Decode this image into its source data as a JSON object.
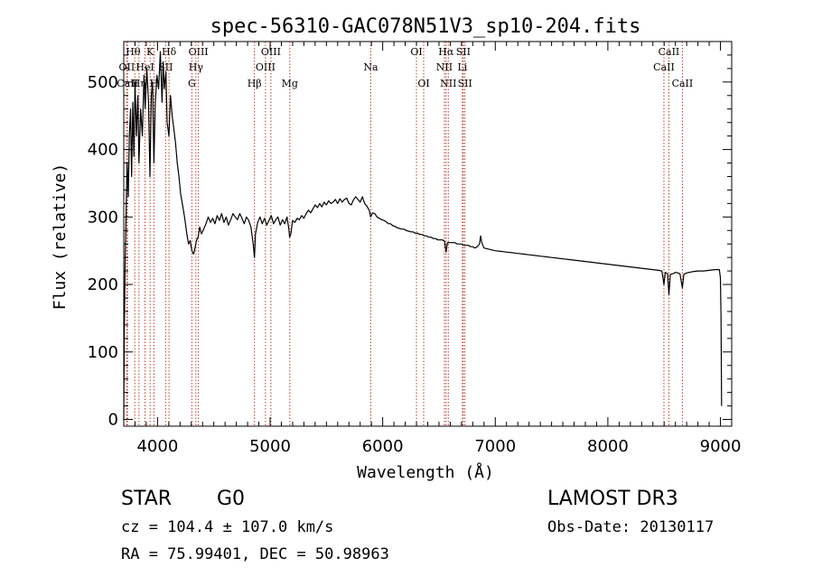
{
  "chart_data": {
    "type": "line",
    "title": "spec-56310-GAC078N51V3_sp10-204.fits",
    "xlabel": "Wavelength (Å)",
    "ylabel": "Flux (relative)",
    "xlim": [
      3700,
      9100
    ],
    "ylim": [
      -10,
      560
    ],
    "xticks": [
      4000,
      5000,
      6000,
      7000,
      8000,
      9000
    ],
    "yticks": [
      0,
      100,
      200,
      300,
      400,
      500
    ],
    "grid": false,
    "series": [
      {
        "name": "flux",
        "color": "#000000",
        "points": [
          [
            3700,
            0
          ],
          [
            3705,
            130
          ],
          [
            3712,
            230
          ],
          [
            3720,
            300
          ],
          [
            3730,
            380
          ],
          [
            3740,
            330
          ],
          [
            3750,
            420
          ],
          [
            3760,
            460
          ],
          [
            3770,
            360
          ],
          [
            3780,
            470
          ],
          [
            3790,
            390
          ],
          [
            3800,
            500
          ],
          [
            3812,
            420
          ],
          [
            3825,
            480
          ],
          [
            3835,
            380
          ],
          [
            3850,
            460
          ],
          [
            3865,
            420
          ],
          [
            3880,
            510
          ],
          [
            3890,
            460
          ],
          [
            3905,
            520
          ],
          [
            3920,
            470
          ],
          [
            3933,
            360
          ],
          [
            3945,
            480
          ],
          [
            3955,
            500
          ],
          [
            3968,
            380
          ],
          [
            3980,
            470
          ],
          [
            3995,
            510
          ],
          [
            4010,
            490
          ],
          [
            4025,
            545
          ],
          [
            4040,
            470
          ],
          [
            4050,
            530
          ],
          [
            4060,
            490
          ],
          [
            4075,
            515
          ],
          [
            4085,
            440
          ],
          [
            4101,
            420
          ],
          [
            4115,
            480
          ],
          [
            4130,
            450
          ],
          [
            4145,
            430
          ],
          [
            4160,
            410
          ],
          [
            4175,
            380
          ],
          [
            4190,
            360
          ],
          [
            4205,
            335
          ],
          [
            4220,
            320
          ],
          [
            4240,
            300
          ],
          [
            4260,
            275
          ],
          [
            4275,
            260
          ],
          [
            4290,
            265
          ],
          [
            4305,
            250
          ],
          [
            4320,
            245
          ],
          [
            4335,
            255
          ],
          [
            4345,
            265
          ],
          [
            4360,
            270
          ],
          [
            4375,
            285
          ],
          [
            4390,
            275
          ],
          [
            4410,
            282
          ],
          [
            4430,
            290
          ],
          [
            4450,
            300
          ],
          [
            4470,
            292
          ],
          [
            4490,
            298
          ],
          [
            4510,
            290
          ],
          [
            4530,
            302
          ],
          [
            4550,
            295
          ],
          [
            4570,
            305
          ],
          [
            4590,
            292
          ],
          [
            4610,
            300
          ],
          [
            4630,
            288
          ],
          [
            4650,
            296
          ],
          [
            4670,
            305
          ],
          [
            4690,
            300
          ],
          [
            4710,
            296
          ],
          [
            4730,
            305
          ],
          [
            4750,
            298
          ],
          [
            4770,
            290
          ],
          [
            4790,
            300
          ],
          [
            4810,
            295
          ],
          [
            4830,
            285
          ],
          [
            4850,
            260
          ],
          [
            4861,
            240
          ],
          [
            4870,
            275
          ],
          [
            4890,
            292
          ],
          [
            4910,
            300
          ],
          [
            4930,
            290
          ],
          [
            4950,
            298
          ],
          [
            4970,
            288
          ],
          [
            4990,
            295
          ],
          [
            5010,
            302
          ],
          [
            5030,
            290
          ],
          [
            5050,
            296
          ],
          [
            5070,
            300
          ],
          [
            5090,
            288
          ],
          [
            5110,
            296
          ],
          [
            5130,
            290
          ],
          [
            5150,
            300
          ],
          [
            5167,
            282
          ],
          [
            5173,
            270
          ],
          [
            5184,
            275
          ],
          [
            5200,
            295
          ],
          [
            5220,
            292
          ],
          [
            5240,
            298
          ],
          [
            5260,
            296
          ],
          [
            5280,
            302
          ],
          [
            5300,
            298
          ],
          [
            5320,
            305
          ],
          [
            5340,
            310
          ],
          [
            5360,
            306
          ],
          [
            5380,
            312
          ],
          [
            5400,
            318
          ],
          [
            5420,
            314
          ],
          [
            5440,
            320
          ],
          [
            5460,
            315
          ],
          [
            5480,
            322
          ],
          [
            5500,
            318
          ],
          [
            5520,
            324
          ],
          [
            5540,
            320
          ],
          [
            5560,
            322
          ],
          [
            5580,
            326
          ],
          [
            5600,
            320
          ],
          [
            5620,
            327
          ],
          [
            5640,
            322
          ],
          [
            5660,
            326
          ],
          [
            5680,
            328
          ],
          [
            5700,
            320
          ],
          [
            5720,
            318
          ],
          [
            5740,
            325
          ],
          [
            5760,
            330
          ],
          [
            5780,
            326
          ],
          [
            5800,
            322
          ],
          [
            5820,
            330
          ],
          [
            5840,
            320
          ],
          [
            5860,
            316
          ],
          [
            5880,
            310
          ],
          [
            5893,
            300
          ],
          [
            5910,
            306
          ],
          [
            5930,
            305
          ],
          [
            5950,
            300
          ],
          [
            5970,
            298
          ],
          [
            5990,
            296
          ],
          [
            6010,
            295
          ],
          [
            6030,
            293
          ],
          [
            6050,
            290
          ],
          [
            6070,
            290
          ],
          [
            6090,
            287
          ],
          [
            6110,
            286
          ],
          [
            6130,
            284
          ],
          [
            6150,
            283
          ],
          [
            6170,
            282
          ],
          [
            6190,
            282
          ],
          [
            6210,
            280
          ],
          [
            6230,
            279
          ],
          [
            6250,
            278
          ],
          [
            6270,
            278
          ],
          [
            6290,
            276
          ],
          [
            6310,
            276
          ],
          [
            6330,
            274
          ],
          [
            6350,
            274
          ],
          [
            6370,
            272
          ],
          [
            6390,
            272
          ],
          [
            6410,
            270
          ],
          [
            6430,
            270
          ],
          [
            6450,
            268
          ],
          [
            6470,
            268
          ],
          [
            6490,
            266
          ],
          [
            6510,
            266
          ],
          [
            6530,
            266
          ],
          [
            6550,
            264
          ],
          [
            6563,
            248
          ],
          [
            6575,
            262
          ],
          [
            6600,
            262
          ],
          [
            6620,
            262
          ],
          [
            6640,
            262
          ],
          [
            6660,
            260
          ],
          [
            6680,
            260
          ],
          [
            6700,
            260
          ],
          [
            6720,
            258
          ],
          [
            6740,
            258
          ],
          [
            6760,
            258
          ],
          [
            6780,
            256
          ],
          [
            6800,
            256
          ],
          [
            6820,
            254
          ],
          [
            6840,
            256
          ],
          [
            6860,
            260
          ],
          [
            6870,
            272
          ],
          [
            6880,
            262
          ],
          [
            6900,
            254
          ],
          [
            6950,
            252
          ],
          [
            7000,
            250
          ],
          [
            7050,
            249
          ],
          [
            7100,
            248
          ],
          [
            7150,
            247
          ],
          [
            7200,
            246
          ],
          [
            7250,
            245
          ],
          [
            7300,
            244
          ],
          [
            7350,
            243
          ],
          [
            7400,
            242
          ],
          [
            7450,
            241
          ],
          [
            7500,
            240
          ],
          [
            7550,
            239
          ],
          [
            7600,
            238
          ],
          [
            7650,
            237
          ],
          [
            7700,
            236
          ],
          [
            7750,
            235
          ],
          [
            7800,
            234
          ],
          [
            7850,
            233
          ],
          [
            7900,
            232
          ],
          [
            7950,
            231
          ],
          [
            8000,
            230
          ],
          [
            8050,
            229
          ],
          [
            8100,
            228
          ],
          [
            8150,
            227
          ],
          [
            8200,
            226
          ],
          [
            8250,
            225
          ],
          [
            8300,
            224
          ],
          [
            8350,
            223
          ],
          [
            8400,
            222
          ],
          [
            8450,
            221
          ],
          [
            8480,
            220
          ],
          [
            8498,
            200
          ],
          [
            8510,
            218
          ],
          [
            8530,
            216
          ],
          [
            8542,
            185
          ],
          [
            8555,
            215
          ],
          [
            8580,
            216
          ],
          [
            8600,
            218
          ],
          [
            8620,
            217
          ],
          [
            8640,
            216
          ],
          [
            8662,
            195
          ],
          [
            8675,
            215
          ],
          [
            8700,
            217
          ],
          [
            8750,
            219
          ],
          [
            8800,
            220
          ],
          [
            8850,
            220
          ],
          [
            8900,
            221
          ],
          [
            8950,
            222
          ],
          [
            8990,
            222
          ],
          [
            9000,
            210
          ],
          [
            9005,
            150
          ],
          [
            9010,
            20
          ]
        ]
      }
    ],
    "lines": [
      {
        "name": "Hθ",
        "wl": 3798
      },
      {
        "name": "OII",
        "wl": 3727
      },
      {
        "name": "CaII",
        "wl": 3733
      },
      {
        "name": "Hη",
        "wl": 3835
      },
      {
        "name": "HeI",
        "wl": 3889
      },
      {
        "name": "K",
        "wl": 3934
      },
      {
        "name": "SII",
        "wl": 4072
      },
      {
        "name": "H",
        "wl": 3968
      },
      {
        "name": "Hδ",
        "wl": 4102
      },
      {
        "name": "OIII",
        "wl": 4363
      },
      {
        "name": "Hγ",
        "wl": 4341
      },
      {
        "name": "G",
        "wl": 4305
      },
      {
        "name": "OIII",
        "wl": 4959
      },
      {
        "name": "OIII",
        "wl": 5007
      },
      {
        "name": "Hβ",
        "wl": 4861
      },
      {
        "name": "Mg",
        "wl": 5175
      },
      {
        "name": "Na",
        "wl": 5894
      },
      {
        "name": "OI",
        "wl": 6300
      },
      {
        "name": "OI",
        "wl": 6364
      },
      {
        "name": "Hα",
        "wl": 6563
      },
      {
        "name": "NII",
        "wl": 6548
      },
      {
        "name": "NII",
        "wl": 6583
      },
      {
        "name": "SII",
        "wl": 6716
      },
      {
        "name": "Li",
        "wl": 6708
      },
      {
        "name": "SII",
        "wl": 6731
      },
      {
        "name": "CaII",
        "wl": 8542
      },
      {
        "name": "CaII",
        "wl": 8498
      },
      {
        "name": "CaII",
        "wl": 8662
      }
    ],
    "label_rows": [
      [
        {
          "text": "Hθ",
          "wl": 3783
        },
        {
          "text": "K",
          "wl": 3934
        },
        {
          "text": "Hδ",
          "wl": 4102
        },
        {
          "text": "OIII",
          "wl": 4363
        },
        {
          "text": "OIII",
          "wl": 5007
        },
        {
          "text": "OI",
          "wl": 6300
        },
        {
          "text": "Hα",
          "wl": 6563
        },
        {
          "text": "SII",
          "wl": 6716
        },
        {
          "text": "CaII",
          "wl": 8542
        }
      ],
      [
        {
          "text": "OII",
          "wl": 3727
        },
        {
          "text": "HeI",
          "wl": 3889
        },
        {
          "text": "SII",
          "wl": 4072
        },
        {
          "text": "Hγ",
          "wl": 4341
        },
        {
          "text": "OIII",
          "wl": 4959
        },
        {
          "text": "Na",
          "wl": 5894
        },
        {
          "text": "NII",
          "wl": 6548
        },
        {
          "text": "Li",
          "wl": 6708
        },
        {
          "text": "CaII",
          "wl": 8498
        }
      ],
      [
        {
          "text": "CaII",
          "wl": 3733
        },
        {
          "text": "Hη",
          "wl": 3835
        },
        {
          "text": "H",
          "wl": 3968
        },
        {
          "text": "G",
          "wl": 4305
        },
        {
          "text": "Hβ",
          "wl": 4861
        },
        {
          "text": "Mg",
          "wl": 5175
        },
        {
          "text": "OI",
          "wl": 6364
        },
        {
          "text": "NII",
          "wl": 6583
        },
        {
          "text": "SII",
          "wl": 6731
        },
        {
          "text": "CaII",
          "wl": 8662
        }
      ]
    ]
  },
  "info": {
    "class": "STAR",
    "subclass": "G0",
    "survey": "LAMOST DR3",
    "cz": "cz = 104.4 ± 107.0 km/s",
    "obs_date": "Obs-Date: 20130117",
    "radec": "RA =  75.99401, DEC =  50.98963"
  }
}
